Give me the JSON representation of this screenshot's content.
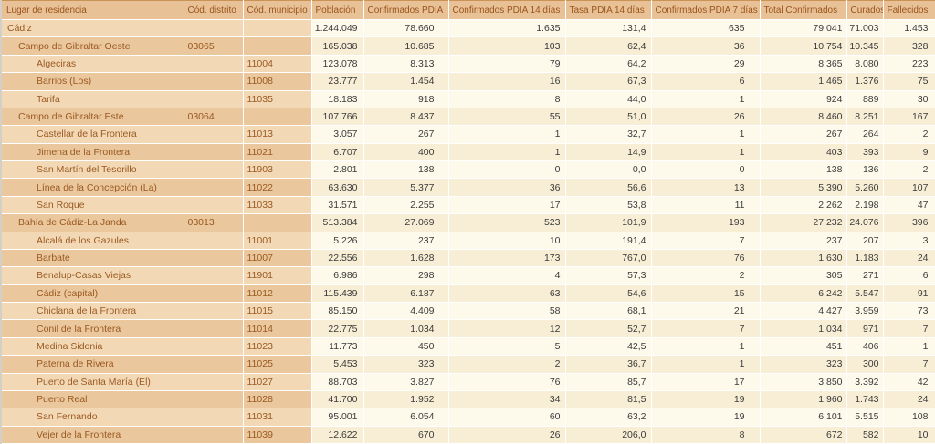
{
  "colors": {
    "header_bg": "#e9c197",
    "header_text": "#98551c",
    "row_tan_light": "#f3d8b6",
    "row_tan_dark": "#eac79c",
    "row_cream_light": "#fdfaeb",
    "row_cream_dark": "#f8eed5",
    "name_text": "#9a5a22",
    "number_text": "#3b3b3b",
    "top_border": "#c89355"
  },
  "table": {
    "columns": [
      "Lugar de residencia",
      "Cód. distrito",
      "Cód. municipio",
      "Población",
      "Confirmados PDIA",
      "Confirmados PDIA 14 días",
      "Tasa PDIA 14 días",
      "Confirmados PDIA 7 días",
      "Total Confirmados",
      "Curados",
      "Fallecidos"
    ],
    "rows": [
      {
        "level": 0,
        "name": "Cádiz",
        "distrito": "",
        "municipio": "",
        "values": [
          "1.244.049",
          "78.660",
          "1.635",
          "131,4",
          "635",
          "79.041",
          "71.003",
          "1.453"
        ]
      },
      {
        "level": 1,
        "name": "Campo de Gibraltar Oeste",
        "distrito": "03065",
        "municipio": "",
        "values": [
          "165.038",
          "10.685",
          "103",
          "62,4",
          "36",
          "10.754",
          "10.345",
          "328"
        ]
      },
      {
        "level": 2,
        "name": "Algeciras",
        "distrito": "",
        "municipio": "11004",
        "values": [
          "123.078",
          "8.313",
          "79",
          "64,2",
          "29",
          "8.365",
          "8.080",
          "223"
        ]
      },
      {
        "level": 2,
        "name": "Barrios (Los)",
        "distrito": "",
        "municipio": "11008",
        "values": [
          "23.777",
          "1.454",
          "16",
          "67,3",
          "6",
          "1.465",
          "1.376",
          "75"
        ]
      },
      {
        "level": 2,
        "name": "Tarifa",
        "distrito": "",
        "municipio": "11035",
        "values": [
          "18.183",
          "918",
          "8",
          "44,0",
          "1",
          "924",
          "889",
          "30"
        ]
      },
      {
        "level": 1,
        "name": "Campo de Gibraltar Este",
        "distrito": "03064",
        "municipio": "",
        "values": [
          "107.766",
          "8.437",
          "55",
          "51,0",
          "26",
          "8.460",
          "8.251",
          "167"
        ]
      },
      {
        "level": 2,
        "name": "Castellar de la Frontera",
        "distrito": "",
        "municipio": "11013",
        "values": [
          "3.057",
          "267",
          "1",
          "32,7",
          "1",
          "267",
          "264",
          "2"
        ]
      },
      {
        "level": 2,
        "name": "Jimena de la Frontera",
        "distrito": "",
        "municipio": "11021",
        "values": [
          "6.707",
          "400",
          "1",
          "14,9",
          "1",
          "403",
          "393",
          "9"
        ]
      },
      {
        "level": 2,
        "name": "San Martín del Tesorillo",
        "distrito": "",
        "municipio": "11903",
        "values": [
          "2.801",
          "138",
          "0",
          "0,0",
          "0",
          "138",
          "136",
          "2"
        ]
      },
      {
        "level": 2,
        "name": "Línea de la Concepción (La)",
        "distrito": "",
        "municipio": "11022",
        "values": [
          "63.630",
          "5.377",
          "36",
          "56,6",
          "13",
          "5.390",
          "5.260",
          "107"
        ]
      },
      {
        "level": 2,
        "name": "San Roque",
        "distrito": "",
        "municipio": "11033",
        "values": [
          "31.571",
          "2.255",
          "17",
          "53,8",
          "11",
          "2.262",
          "2.198",
          "47"
        ]
      },
      {
        "level": 1,
        "name": "Bahía de Cádiz-La Janda",
        "distrito": "03013",
        "municipio": "",
        "values": [
          "513.384",
          "27.069",
          "523",
          "101,9",
          "193",
          "27.232",
          "24.076",
          "396"
        ]
      },
      {
        "level": 2,
        "name": "Alcalá de los Gazules",
        "distrito": "",
        "municipio": "11001",
        "values": [
          "5.226",
          "237",
          "10",
          "191,4",
          "7",
          "237",
          "207",
          "3"
        ]
      },
      {
        "level": 2,
        "name": "Barbate",
        "distrito": "",
        "municipio": "11007",
        "values": [
          "22.556",
          "1.628",
          "173",
          "767,0",
          "76",
          "1.630",
          "1.183",
          "24"
        ]
      },
      {
        "level": 2,
        "name": "Benalup-Casas Viejas",
        "distrito": "",
        "municipio": "11901",
        "values": [
          "6.986",
          "298",
          "4",
          "57,3",
          "2",
          "305",
          "271",
          "6"
        ]
      },
      {
        "level": 2,
        "name": "Cádiz (capital)",
        "distrito": "",
        "municipio": "11012",
        "values": [
          "115.439",
          "6.187",
          "63",
          "54,6",
          "15",
          "6.242",
          "5.547",
          "91"
        ]
      },
      {
        "level": 2,
        "name": "Chiclana de la Frontera",
        "distrito": "",
        "municipio": "11015",
        "values": [
          "85.150",
          "4.409",
          "58",
          "68,1",
          "21",
          "4.427",
          "3.959",
          "73"
        ]
      },
      {
        "level": 2,
        "name": "Conil de la Frontera",
        "distrito": "",
        "municipio": "11014",
        "values": [
          "22.775",
          "1.034",
          "12",
          "52,7",
          "7",
          "1.034",
          "971",
          "7"
        ]
      },
      {
        "level": 2,
        "name": "Medina Sidonia",
        "distrito": "",
        "municipio": "11023",
        "values": [
          "11.773",
          "450",
          "5",
          "42,5",
          "1",
          "451",
          "406",
          "1"
        ]
      },
      {
        "level": 2,
        "name": "Paterna de Rivera",
        "distrito": "",
        "municipio": "11025",
        "values": [
          "5.453",
          "323",
          "2",
          "36,7",
          "1",
          "323",
          "300",
          "7"
        ]
      },
      {
        "level": 2,
        "name": "Puerto de Santa María (El)",
        "distrito": "",
        "municipio": "11027",
        "values": [
          "88.703",
          "3.827",
          "76",
          "85,7",
          "17",
          "3.850",
          "3.392",
          "42"
        ]
      },
      {
        "level": 2,
        "name": "Puerto Real",
        "distrito": "",
        "municipio": "11028",
        "values": [
          "41.700",
          "1.952",
          "34",
          "81,5",
          "19",
          "1.960",
          "1.743",
          "24"
        ]
      },
      {
        "level": 2,
        "name": "San Fernando",
        "distrito": "",
        "municipio": "11031",
        "values": [
          "95.001",
          "6.054",
          "60",
          "63,2",
          "19",
          "6.101",
          "5.515",
          "108"
        ]
      },
      {
        "level": 2,
        "name": "Vejer de la Frontera",
        "distrito": "",
        "municipio": "11039",
        "values": [
          "12.622",
          "670",
          "26",
          "206,0",
          "8",
          "672",
          "582",
          "10"
        ]
      }
    ]
  }
}
